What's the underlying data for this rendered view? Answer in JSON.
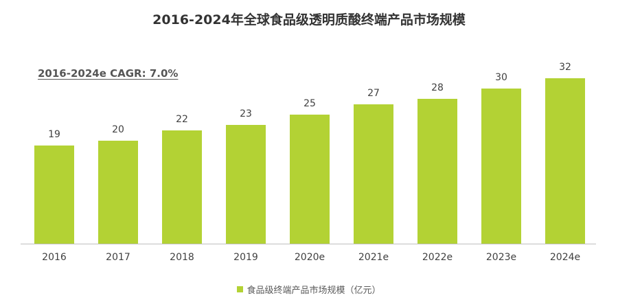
{
  "title": "2016-2024年全球食品级透明质酸终端产品市场规模",
  "annotation": "2016-2024e CAGR: 7.0%",
  "legend": {
    "label": "食品级终端产品市场规模（亿元）",
    "color": "#b3d234"
  },
  "chart_data": {
    "type": "bar",
    "title": "2016-2024年全球食品级透明质酸终端产品市场规模",
    "categories": [
      "2016",
      "2017",
      "2018",
      "2019",
      "2020e",
      "2021e",
      "2022e",
      "2023e",
      "2024e"
    ],
    "series": [
      {
        "name": "食品级终端产品市场规模（亿元）",
        "values": [
          19,
          20,
          22,
          23,
          25,
          27,
          28,
          30,
          32
        ],
        "color": "#b3d234"
      }
    ],
    "annotations": [
      "2016-2024e CAGR: 7.0%"
    ],
    "xlabel": "",
    "ylabel": "",
    "ylim": [
      0,
      35
    ],
    "grid": false,
    "legend_position": "bottom",
    "data_labels": true
  }
}
